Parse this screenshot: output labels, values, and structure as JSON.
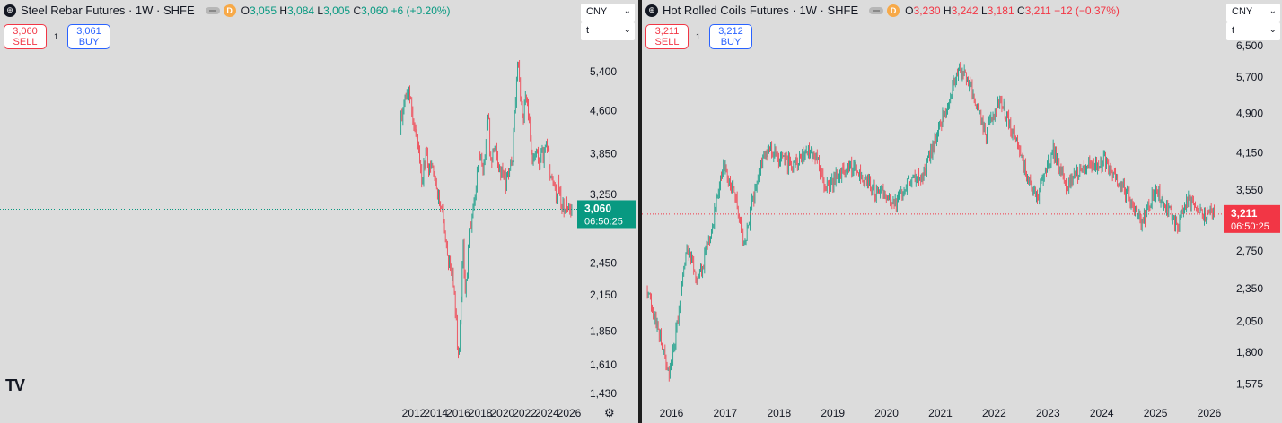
{
  "charts": [
    {
      "symbol": "Steel Rebar Futures · 1W · SHFE",
      "trend": "up",
      "ohlc": {
        "o_label": "O",
        "o": "3,055",
        "h_label": "H",
        "h": "3,084",
        "l_label": "L",
        "l": "3,005",
        "c_label": "C",
        "c": "3,060",
        "chg": "+6 (+0.20%)"
      },
      "sell": {
        "price": "3,060",
        "label": "SELL"
      },
      "buy": {
        "price": "3,061",
        "label": "BUY"
      },
      "qty": "1",
      "currency": "CNY",
      "unit": "t",
      "price_tag": {
        "price": "3,060",
        "countdown": "06:50:25"
      },
      "logo": "TV"
    },
    {
      "symbol": "Hot Rolled Coils Futures · 1W · SHFE",
      "trend": "down",
      "ohlc": {
        "o_label": "O",
        "o": "3,230",
        "h_label": "H",
        "h": "3,242",
        "l_label": "L",
        "l": "3,181",
        "c_label": "C",
        "c": "3,211",
        "chg": "−12 (−0.37%)"
      },
      "sell": {
        "price": "3,211",
        "label": "SELL"
      },
      "buy": {
        "price": "3,212",
        "label": "BUY"
      },
      "qty": "1",
      "currency": "CNY",
      "unit": "t",
      "price_tag": {
        "price": "3,211",
        "countdown": "06:50:25"
      }
    }
  ],
  "chart_data": [
    {
      "type": "candlestick",
      "title": "Steel Rebar Futures · 1W · SHFE",
      "x_ticks": [
        "2012",
        "2014",
        "2016",
        "2018",
        "2020",
        "2022",
        "2024",
        "2026"
      ],
      "x_range": [
        2010.75,
        2026.3
      ],
      "y_ticks": [
        1430,
        1610,
        1850,
        2150,
        2450,
        3250,
        3850,
        4600,
        5400
      ],
      "y_scale": "log",
      "last_price": 3060,
      "colors": {
        "up": "#089981",
        "down": "#f23645"
      },
      "path": [
        [
          2010.75,
          4300
        ],
        [
          2011.0,
          4650
        ],
        [
          2011.3,
          4950
        ],
        [
          2011.7,
          4880
        ],
        [
          2011.9,
          4300
        ],
        [
          2012.2,
          4200
        ],
        [
          2012.5,
          3800
        ],
        [
          2012.7,
          3400
        ],
        [
          2012.9,
          3650
        ],
        [
          2013.1,
          3900
        ],
        [
          2013.3,
          3600
        ],
        [
          2013.6,
          3700
        ],
        [
          2013.9,
          3500
        ],
        [
          2014.1,
          3300
        ],
        [
          2014.5,
          3100
        ],
        [
          2014.9,
          2600
        ],
        [
          2015.3,
          2400
        ],
        [
          2015.6,
          2200
        ],
        [
          2015.8,
          1950
        ],
        [
          2015.95,
          1620
        ],
        [
          2016.1,
          1750
        ],
        [
          2016.3,
          2150
        ],
        [
          2016.4,
          2700
        ],
        [
          2016.6,
          2200
        ],
        [
          2016.8,
          2350
        ],
        [
          2017.0,
          2800
        ],
        [
          2017.3,
          3000
        ],
        [
          2017.6,
          3400
        ],
        [
          2017.9,
          3800
        ],
        [
          2018.2,
          3600
        ],
        [
          2018.5,
          4000
        ],
        [
          2018.7,
          4600
        ],
        [
          2018.9,
          3700
        ],
        [
          2019.1,
          3850
        ],
        [
          2019.4,
          3950
        ],
        [
          2019.7,
          3600
        ],
        [
          2020.0,
          3550
        ],
        [
          2020.3,
          3400
        ],
        [
          2020.6,
          3600
        ],
        [
          2020.9,
          3800
        ],
        [
          2021.1,
          4600
        ],
        [
          2021.38,
          5800
        ],
        [
          2021.6,
          5000
        ],
        [
          2021.85,
          4400
        ],
        [
          2022.1,
          5000
        ],
        [
          2022.4,
          4400
        ],
        [
          2022.6,
          3900
        ],
        [
          2022.8,
          3650
        ],
        [
          2023.0,
          4000
        ],
        [
          2023.3,
          3600
        ],
        [
          2023.5,
          3800
        ],
        [
          2023.8,
          3850
        ],
        [
          2024.0,
          4000
        ],
        [
          2024.3,
          3500
        ],
        [
          2024.6,
          3350
        ],
        [
          2024.8,
          3150
        ],
        [
          2025.0,
          3450
        ],
        [
          2025.3,
          3150
        ],
        [
          2025.6,
          3050
        ],
        [
          2025.8,
          3150
        ],
        [
          2026.1,
          3050
        ],
        [
          2026.3,
          3060
        ]
      ]
    },
    {
      "type": "candlestick",
      "title": "Hot Rolled Coils Futures · 1W · SHFE",
      "x_ticks": [
        "2016",
        "2017",
        "2018",
        "2019",
        "2020",
        "2021",
        "2022",
        "2023",
        "2024",
        "2025",
        "2026"
      ],
      "x_range": [
        2015.55,
        2026.1
      ],
      "y_ticks": [
        1575,
        1800,
        2050,
        2350,
        2750,
        3550,
        4150,
        4900,
        5700,
        6500
      ],
      "y_scale": "log",
      "last_price": 3211,
      "colors": {
        "up": "#089981",
        "down": "#f23645"
      },
      "path": [
        [
          2015.55,
          2350
        ],
        [
          2015.8,
          1900
        ],
        [
          2015.95,
          1650
        ],
        [
          2016.1,
          2000
        ],
        [
          2016.3,
          2800
        ],
        [
          2016.5,
          2400
        ],
        [
          2016.75,
          3000
        ],
        [
          2016.95,
          3900
        ],
        [
          2017.15,
          3600
        ],
        [
          2017.35,
          2800
        ],
        [
          2017.6,
          3700
        ],
        [
          2017.8,
          4300
        ],
        [
          2018.0,
          4050
        ],
        [
          2018.3,
          3950
        ],
        [
          2018.6,
          4250
        ],
        [
          2018.9,
          3550
        ],
        [
          2019.1,
          3800
        ],
        [
          2019.4,
          3900
        ],
        [
          2019.7,
          3600
        ],
        [
          2019.95,
          3450
        ],
        [
          2020.15,
          3300
        ],
        [
          2020.4,
          3700
        ],
        [
          2020.7,
          3800
        ],
        [
          2020.95,
          4500
        ],
        [
          2021.15,
          5200
        ],
        [
          2021.35,
          6000
        ],
        [
          2021.6,
          5300
        ],
        [
          2021.85,
          4500
        ],
        [
          2022.1,
          5200
        ],
        [
          2022.35,
          4500
        ],
        [
          2022.6,
          3800
        ],
        [
          2022.8,
          3450
        ],
        [
          2023.1,
          4200
        ],
        [
          2023.35,
          3600
        ],
        [
          2023.6,
          3850
        ],
        [
          2023.85,
          3950
        ],
        [
          2024.05,
          4000
        ],
        [
          2024.3,
          3700
        ],
        [
          2024.6,
          3350
        ],
        [
          2024.75,
          3100
        ],
        [
          2025.0,
          3550
        ],
        [
          2025.2,
          3350
        ],
        [
          2025.4,
          3050
        ],
        [
          2025.6,
          3400
        ],
        [
          2025.85,
          3200
        ],
        [
          2026.1,
          3211
        ]
      ]
    }
  ]
}
